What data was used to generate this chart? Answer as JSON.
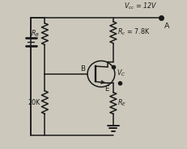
{
  "bg_color": "#ccc9bc",
  "line_color": "#1a1a1a",
  "text_color": "#1a1a1a",
  "vcc_label": "$V_{cc}$ = 12V",
  "rc_label": "$R_c$ = 7.8K",
  "vc_label": "$V_C$",
  "rb_top_label": "$R_B$",
  "rb_bot_label": "20K",
  "re_label": "$R_E$",
  "node_A": "A",
  "node_B": "B",
  "node_E": "E",
  "figsize": [
    2.31,
    1.85
  ],
  "dpi": 100
}
